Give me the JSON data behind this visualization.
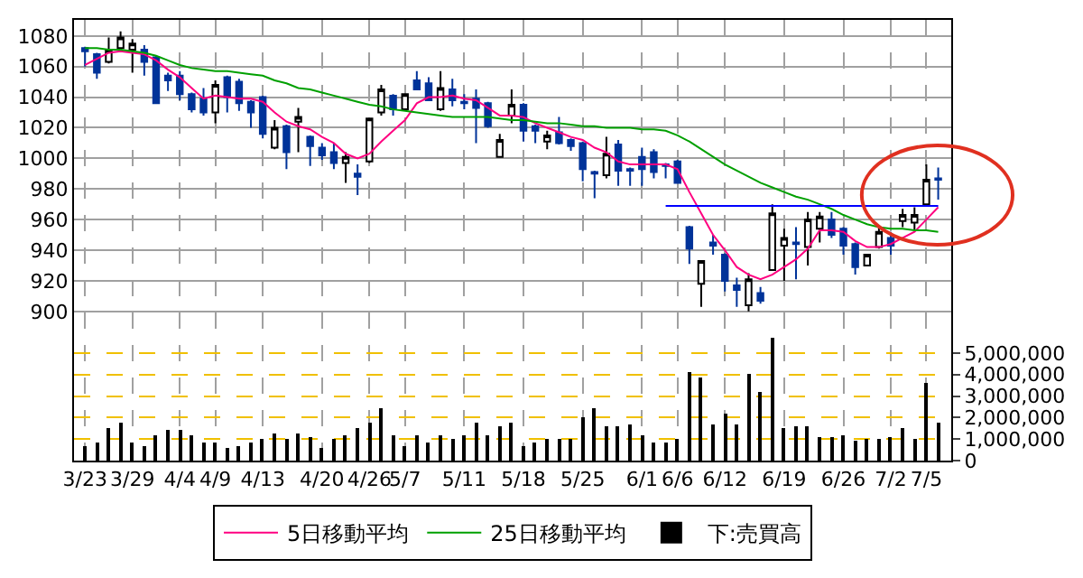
{
  "chart_data": {
    "type": "candlestick",
    "categories": [
      "3/23",
      null,
      null,
      null,
      "3/29",
      null,
      null,
      null,
      "4/4",
      null,
      null,
      "4/9",
      null,
      null,
      null,
      "4/13",
      null,
      null,
      null,
      null,
      "4/20",
      null,
      null,
      null,
      "4/26",
      null,
      null,
      "5/7",
      null,
      null,
      null,
      null,
      "5/11",
      null,
      null,
      null,
      null,
      "5/18",
      null,
      null,
      null,
      null,
      "5/25",
      null,
      null,
      null,
      null,
      "6/1",
      null,
      null,
      "6/6",
      null,
      null,
      null,
      "6/12",
      null,
      null,
      null,
      null,
      "6/19",
      null,
      null,
      null,
      null,
      "6/26",
      null,
      null,
      null,
      "7/2",
      null,
      null,
      "7/5",
      null
    ],
    "ohlc": [
      [
        1072,
        1073,
        1060,
        1070
      ],
      [
        1068,
        1069,
        1052,
        1056
      ],
      [
        1063,
        1079,
        1062,
        1071
      ],
      [
        1072,
        1083,
        1071,
        1079
      ],
      [
        1071,
        1078,
        1056,
        1075
      ],
      [
        1071,
        1074,
        1054,
        1063
      ],
      [
        1066,
        1067,
        1036,
        1036
      ],
      [
        1054,
        1056,
        1044,
        1051
      ],
      [
        1054,
        1057,
        1038,
        1042
      ],
      [
        1042,
        1043,
        1030,
        1032
      ],
      [
        1039,
        1046,
        1028,
        1030
      ],
      [
        1030,
        1051,
        1023,
        1048
      ],
      [
        1053,
        1054,
        1030,
        1040
      ],
      [
        1050,
        1052,
        1031,
        1036
      ],
      [
        1037,
        1038,
        1020,
        1030
      ],
      [
        1040,
        1041,
        1013,
        1016
      ],
      [
        1007,
        1025,
        1006,
        1020
      ],
      [
        1021,
        1022,
        993,
        1004
      ],
      [
        1024,
        1033,
        1004,
        1027
      ],
      [
        1014,
        1015,
        995,
        1008
      ],
      [
        1007,
        1010,
        999,
        1002
      ],
      [
        1004,
        1010,
        993,
        997
      ],
      [
        997,
        1004,
        984,
        1001
      ],
      [
        990,
        996,
        976,
        988
      ],
      [
        998,
        1026,
        997,
        1026
      ],
      [
        1030,
        1048,
        1028,
        1045
      ],
      [
        1041,
        1042,
        1028,
        1032
      ],
      [
        1032,
        1042,
        1031,
        1042
      ],
      [
        1051,
        1057,
        1045,
        1045
      ],
      [
        1049,
        1053,
        1038,
        1038
      ],
      [
        1032,
        1057,
        1031,
        1046
      ],
      [
        1045,
        1052,
        1034,
        1038
      ],
      [
        1037,
        1042,
        1032,
        1036
      ],
      [
        1039,
        1045,
        1010,
        1033
      ],
      [
        1036,
        1037,
        1020,
        1021
      ],
      [
        1001,
        1016,
        1001,
        1012
      ],
      [
        1028,
        1045,
        1023,
        1035
      ],
      [
        1035,
        1036,
        1011,
        1018
      ],
      [
        1021,
        1022,
        1010,
        1018
      ],
      [
        1011,
        1018,
        1006,
        1015
      ],
      [
        1017,
        1027,
        1009,
        1010
      ],
      [
        1012,
        1013,
        1005,
        1008
      ],
      [
        1010,
        1011,
        985,
        993
      ],
      [
        991,
        992,
        974,
        990
      ],
      [
        989,
        1014,
        987,
        1003
      ],
      [
        1009,
        1012,
        982,
        992
      ],
      [
        993,
        994,
        982,
        992
      ],
      [
        1001,
        1007,
        982,
        993
      ],
      [
        1004,
        1006,
        987,
        991
      ],
      [
        996,
        997,
        987,
        995
      ],
      [
        998,
        999,
        984,
        984
      ],
      [
        955,
        956,
        931,
        941
      ],
      [
        918,
        933,
        903,
        933
      ],
      [
        945,
        950,
        937,
        943
      ],
      [
        937,
        938,
        913,
        920
      ],
      [
        917,
        922,
        903,
        914
      ],
      [
        904,
        925,
        900,
        921
      ],
      [
        912,
        916,
        905,
        907
      ],
      [
        927,
        970,
        927,
        964
      ],
      [
        943,
        954,
        920,
        948
      ],
      [
        945,
        955,
        921,
        944
      ],
      [
        942,
        965,
        930,
        960
      ],
      [
        954,
        965,
        945,
        962
      ],
      [
        960,
        965,
        948,
        950
      ],
      [
        954,
        955,
        937,
        943
      ],
      [
        944,
        945,
        924,
        929
      ],
      [
        930,
        937,
        930,
        937
      ],
      [
        942,
        955,
        941,
        952
      ],
      [
        948,
        952,
        937,
        943
      ],
      [
        959,
        967,
        955,
        963
      ],
      [
        958,
        968,
        953,
        963
      ],
      [
        970,
        996,
        969,
        986
      ],
      [
        987,
        994,
        973,
        986
      ]
    ],
    "colors": [
      "#003399",
      "#003399",
      "#ffffff",
      "#ffffff",
      "#ffffff",
      "#003399",
      "#003399",
      "#003399",
      "#003399",
      "#003399",
      "#003399",
      "#ffffff",
      "#003399",
      "#003399",
      "#003399",
      "#003399",
      "#ffffff",
      "#003399",
      "#ffffff",
      "#003399",
      "#003399",
      "#003399",
      "#ffffff",
      "#003399",
      "#ffffff",
      "#ffffff",
      "#003399",
      "#ffffff",
      "#003399",
      "#003399",
      "#ffffff",
      "#003399",
      "#003399",
      "#003399",
      "#003399",
      "#ffffff",
      "#ffffff",
      "#003399",
      "#003399",
      "#ffffff",
      "#003399",
      "#003399",
      "#003399",
      "#003399",
      "#ffffff",
      "#003399",
      "#003399",
      "#003399",
      "#003399",
      "#003399",
      "#003399",
      "#003399",
      "#ffffff",
      "#003399",
      "#003399",
      "#003399",
      "#ffffff",
      "#003399",
      "#ffffff",
      "#ffffff",
      "#003399",
      "#ffffff",
      "#ffffff",
      "#003399",
      "#003399",
      "#003399",
      "#ffffff",
      "#ffffff",
      "#003399",
      "#ffffff",
      "#ffffff",
      "#ffffff",
      "#003399"
    ],
    "series": [
      {
        "type": "line",
        "name": "5日移動平均",
        "color": "#ff0080",
        "values": [
          1061,
          1065,
          1069,
          1070,
          1069,
          1068,
          1064,
          1058,
          1053,
          1046,
          1039,
          1041,
          1040,
          1039,
          1039,
          1037,
          1030,
          1024,
          1021,
          1019,
          1014,
          1010,
          1003,
          1000,
          1003,
          1011,
          1018,
          1025,
          1036,
          1040,
          1040,
          1041,
          1039,
          1038,
          1033,
          1028,
          1028,
          1027,
          1023,
          1020,
          1017,
          1014,
          1012,
          1007,
          1004,
          998,
          996,
          996,
          996,
          996,
          993,
          978,
          964,
          950,
          940,
          929,
          924,
          921,
          924,
          929,
          934,
          941,
          953,
          953,
          952,
          946,
          942,
          942,
          944,
          948,
          952,
          960,
          968
        ]
      },
      {
        "type": "line",
        "name": "25日移動平均",
        "color": "#00a000",
        "values": [
          1072,
          1072,
          1071,
          1071,
          1070,
          1069,
          1067,
          1064,
          1061,
          1059,
          1058,
          1057,
          1057,
          1056,
          1055,
          1054,
          1051,
          1049,
          1046,
          1045,
          1043,
          1041,
          1039,
          1037,
          1035,
          1034,
          1032,
          1031,
          1030,
          1029,
          1028,
          1027,
          1027,
          1027,
          1027,
          1026,
          1025,
          1025,
          1024,
          1023,
          1023,
          1022,
          1021,
          1021,
          1020,
          1020,
          1020,
          1019,
          1019,
          1018,
          1015,
          1011,
          1006,
          1001,
          996,
          992,
          988,
          984,
          981,
          978,
          975,
          973,
          970,
          967,
          963,
          960,
          957,
          955,
          954,
          954,
          953,
          953,
          952
        ]
      },
      {
        "type": "line",
        "color": "#0000ff",
        "values": [
          null,
          null,
          null,
          null,
          null,
          null,
          null,
          null,
          null,
          null,
          null,
          null,
          null,
          null,
          null,
          null,
          null,
          null,
          null,
          null,
          null,
          null,
          null,
          null,
          null,
          null,
          null,
          null,
          null,
          null,
          null,
          null,
          null,
          null,
          null,
          null,
          null,
          null,
          null,
          null,
          null,
          null,
          null,
          null,
          null,
          null,
          null,
          null,
          null,
          969,
          969,
          969,
          969,
          969,
          969,
          969,
          969,
          969,
          969,
          969,
          969,
          969,
          969,
          969,
          969,
          969,
          969,
          969,
          969,
          969,
          969,
          969,
          969
        ]
      },
      {
        "type": "bar",
        "name": "下:売買高",
        "color": "#000000",
        "axis": "y2",
        "values": [
          700000,
          800000,
          1500000,
          1800000,
          800000,
          700000,
          1200000,
          1400000,
          1400000,
          1200000,
          800000,
          800000,
          600000,
          700000,
          800000,
          1000000,
          1300000,
          1000000,
          1300000,
          1100000,
          600000,
          1000000,
          1200000,
          1500000,
          1800000,
          2400000,
          1200000,
          700000,
          1200000,
          800000,
          1200000,
          1000000,
          1200000,
          1800000,
          1200000,
          1600000,
          1800000,
          700000,
          800000,
          1000000,
          1000000,
          1000000,
          2000000,
          2400000,
          1600000,
          1600000,
          1700000,
          1200000,
          800000,
          800000,
          1000000,
          4100000,
          3900000,
          1700000,
          2200000,
          1700000,
          4000000,
          3200000,
          5700000,
          1500000,
          1600000,
          1600000,
          1100000,
          1100000,
          1200000,
          900000,
          1000000,
          1000000,
          1100000,
          1500000,
          1000000,
          3600000,
          1800000
        ]
      }
    ],
    "ylim": [
      802.5,
      1090.5
    ],
    "yticks": [
      900,
      920,
      940,
      960,
      980,
      1000,
      1020,
      1040,
      1060,
      1080
    ],
    "y2lim": [
      0,
      20500000
    ],
    "y2ticks": [
      0,
      {
        "value": 1000000,
        "label": "1,000,000"
      },
      {
        "value": 2000000,
        "label": "2,000,000"
      },
      {
        "value": 3000000,
        "label": "3,000,000"
      },
      {
        "value": 4000000,
        "label": "4,000,000"
      },
      {
        "value": 5000000,
        "label": "5,000,000"
      }
    ],
    "grid": true,
    "legend": "bottom"
  }
}
